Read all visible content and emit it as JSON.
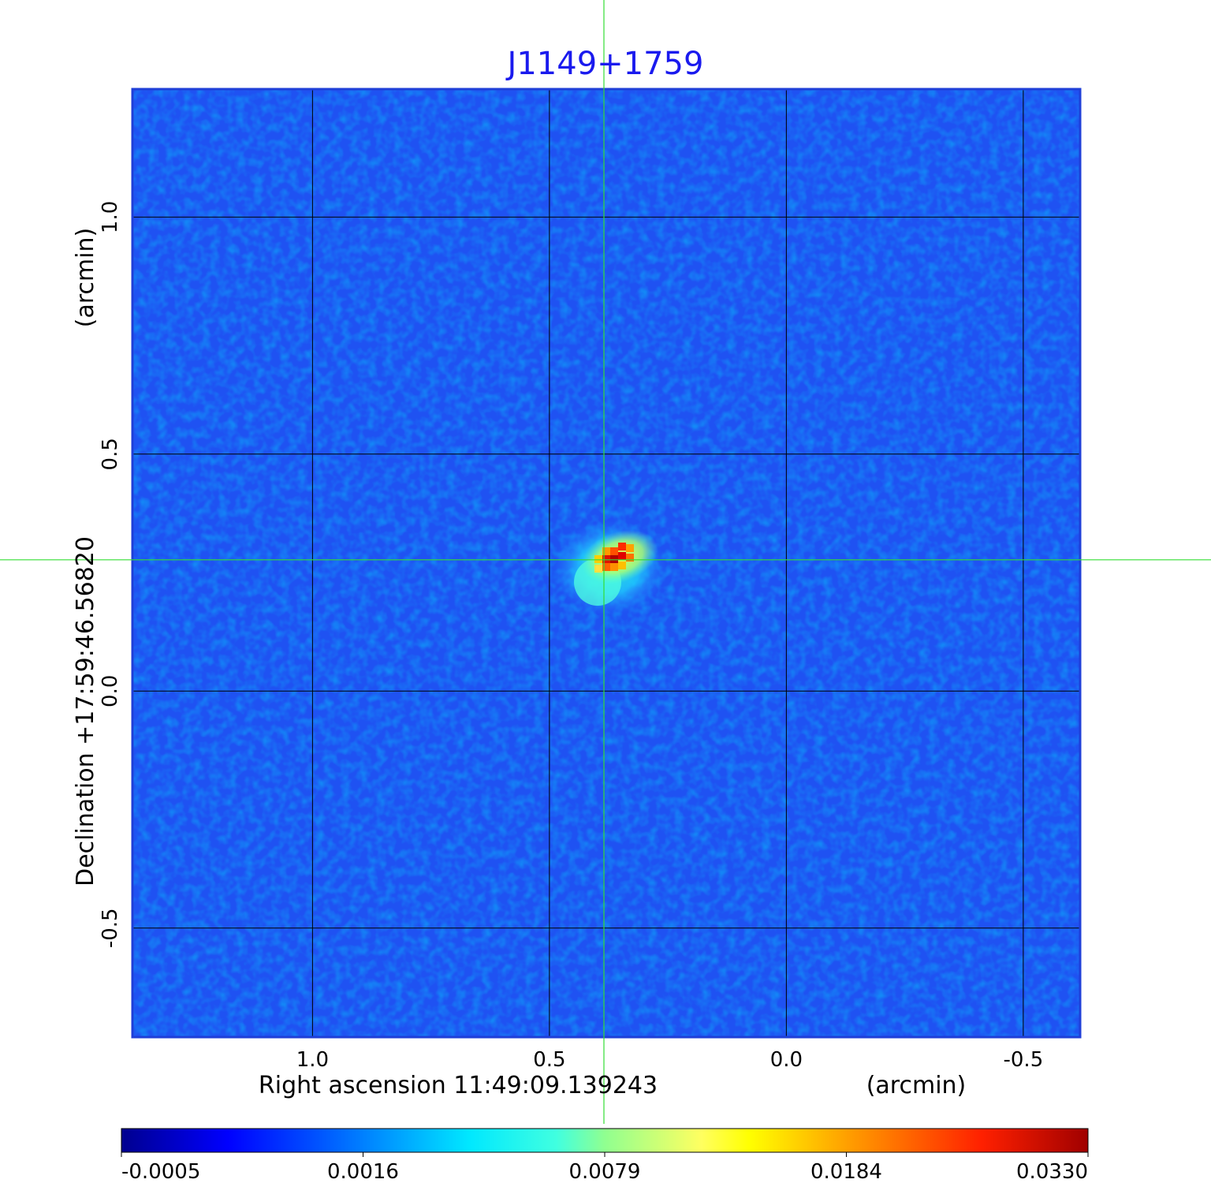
{
  "chart_data": {
    "type": "heatmap",
    "title": "J1149+1759",
    "xlabel": "Right ascension  11:49:09.139243",
    "xunit": "(arcmin)",
    "ylabel": "Declination  +17:59:46.56820",
    "yunit": "(arcmin)",
    "x_ticks": [
      "1.0",
      "0.5",
      "0.0",
      "-0.5"
    ],
    "x_tick_values": [
      1.0,
      0.5,
      0.0,
      -0.5
    ],
    "y_ticks": [
      "1.0",
      "0.5",
      "0.0",
      "-0.5"
    ],
    "y_tick_values": [
      1.0,
      0.5,
      0.0,
      -0.5
    ],
    "xlim": [
      1.38,
      -0.62
    ],
    "ylim": [
      -0.73,
      1.27
    ],
    "grid": true,
    "crosshair": {
      "x": 0.385,
      "y": 0.277,
      "color": "#33dd33"
    },
    "source": {
      "x": 0.365,
      "y": 0.28,
      "peak": 0.033
    },
    "colorbar": {
      "ticks": [
        "-0.0005",
        "0.0016",
        "0.0079",
        "0.0184",
        "0.0330"
      ],
      "colormap": "jet"
    },
    "colors": {
      "title": "#1a1aee",
      "background": "#1f52f2",
      "grid": "#000000"
    }
  }
}
